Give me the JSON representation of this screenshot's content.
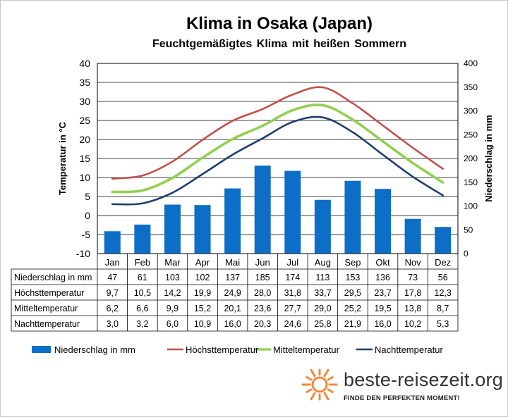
{
  "chart_data": {
    "type": "bar",
    "title": "Klima in Osaka (Japan)",
    "subtitle": "Feuchtgemäßigtes Klima mit heißen Sommern",
    "ylabel_left": "Temperatur in °C",
    "ylabel_right": "Niederschlag in mm",
    "ylim_left": [
      -10,
      40
    ],
    "yticks_left": [
      "40",
      "35",
      "30",
      "25",
      "20",
      "15",
      "10",
      "5",
      "0",
      "-5",
      "-10"
    ],
    "ylim_right": [
      0,
      400
    ],
    "yticks_right": [
      "400",
      "350",
      "300",
      "250",
      "200",
      "150",
      "100",
      "50",
      "0"
    ],
    "grid": true,
    "legend_position": "bottom",
    "categories": [
      "Jan",
      "Feb",
      "Mar",
      "Apr",
      "Mai",
      "Jun",
      "Jul",
      "Aug",
      "Sep",
      "Okt",
      "Nov",
      "Dez"
    ],
    "series": [
      {
        "name": "Niederschlag in mm",
        "kind": "bar",
        "axis": "right",
        "color": "#0d6ec7",
        "values": [
          47,
          61,
          103,
          102,
          137,
          185,
          174,
          113,
          153,
          136,
          73,
          56
        ],
        "labels": [
          "47",
          "61",
          "103",
          "102",
          "137",
          "185",
          "174",
          "113",
          "153",
          "136",
          "73",
          "56"
        ]
      },
      {
        "name": "Höchsttemperatur",
        "kind": "line",
        "axis": "left",
        "color": "#c0504d",
        "values": [
          9.7,
          10.5,
          14.2,
          19.9,
          24.9,
          28.0,
          31.8,
          33.7,
          29.5,
          23.7,
          17.8,
          12.3
        ],
        "labels": [
          "9,7",
          "10,5",
          "14,2",
          "19,9",
          "24,9",
          "28,0",
          "31,8",
          "33,7",
          "29,5",
          "23,7",
          "17,8",
          "12,3"
        ]
      },
      {
        "name": "Mitteltemperatur",
        "kind": "line",
        "axis": "left",
        "color": "#92d050",
        "values": [
          6.2,
          6.6,
          9.9,
          15.2,
          20.1,
          23.6,
          27.7,
          29.0,
          25.2,
          19.5,
          13.8,
          8.7
        ],
        "labels": [
          "6,2",
          "6,6",
          "9,9",
          "15,2",
          "20,1",
          "23,6",
          "27,7",
          "29,0",
          "25,2",
          "19,5",
          "13,8",
          "8,7"
        ]
      },
      {
        "name": "Nachttemperatur",
        "kind": "line",
        "axis": "left",
        "color": "#1f3f6e",
        "values": [
          3.0,
          3.2,
          6.0,
          10.9,
          16.0,
          20.3,
          24.6,
          25.8,
          21.9,
          16.0,
          10.2,
          5.3
        ],
        "labels": [
          "3,0",
          "3,2",
          "6,0",
          "10,9",
          "16,0",
          "20,3",
          "24,6",
          "25,8",
          "21,9",
          "16,0",
          "10,2",
          "5,3"
        ]
      }
    ]
  },
  "branding": {
    "name": "beste-reisezeit.org",
    "slogan": "FINDE DEN PERFEKTEN MOMENT!",
    "logo_icon": "sun-icon",
    "logo_color": "#f08a3c"
  }
}
